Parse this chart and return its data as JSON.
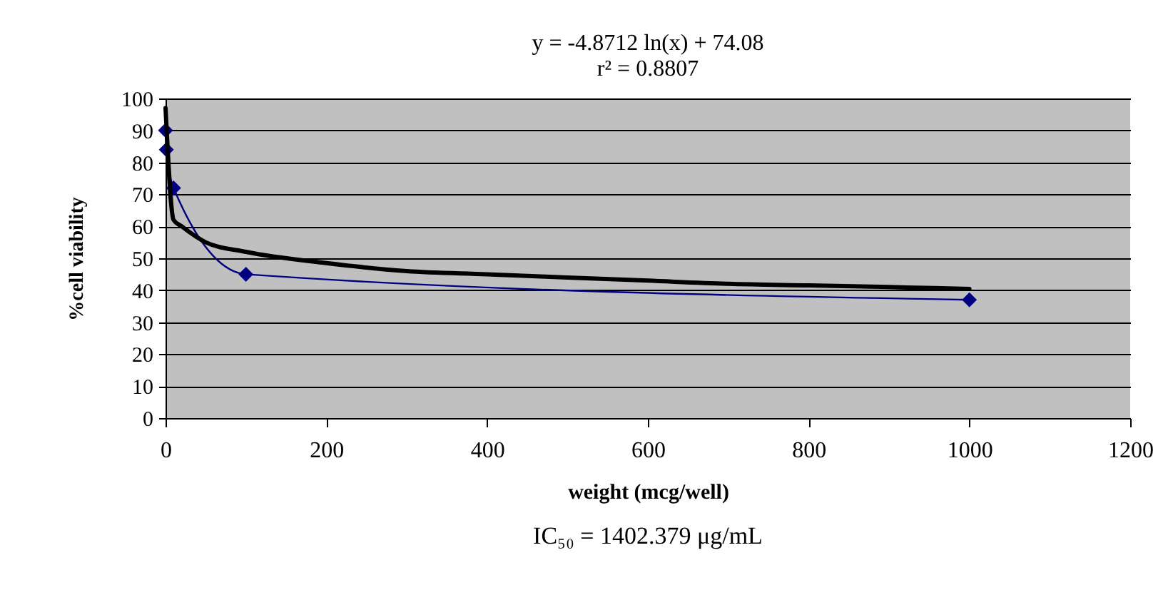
{
  "chart_data": {
    "type": "line",
    "title": "y = -4.8712 ln(x) + 74.08",
    "subtitle": "r² = 0.8807",
    "xlabel": "weight (mcg/well)",
    "ylabel": "%cell viability",
    "annotations": [
      "IC₅₀ = 1402.379 μg/mL"
    ],
    "xlim": [
      0,
      1200
    ],
    "xticks": [
      0,
      200,
      400,
      600,
      800,
      1000,
      1200
    ],
    "ylim": [
      0,
      100
    ],
    "yticks": [
      0,
      10,
      20,
      30,
      40,
      50,
      60,
      70,
      80,
      90,
      100
    ],
    "grid": "y",
    "marker": "diamond",
    "series": [
      {
        "color": "#000080",
        "x": [
          0.01,
          1,
          10,
          100,
          1000
        ],
        "values": [
          90,
          84,
          72,
          45,
          37
        ]
      },
      {
        "type": "line",
        "color": "#000000",
        "marker": "none",
        "x": [
          0.01,
          10,
          20,
          50,
          100,
          200,
          300,
          400,
          500,
          600,
          700,
          800,
          900,
          1000
        ],
        "values": [
          97,
          62,
          60,
          55,
          52,
          48.5,
          46,
          45,
          44,
          43,
          42,
          41.5,
          41,
          40.4
        ]
      }
    ]
  }
}
